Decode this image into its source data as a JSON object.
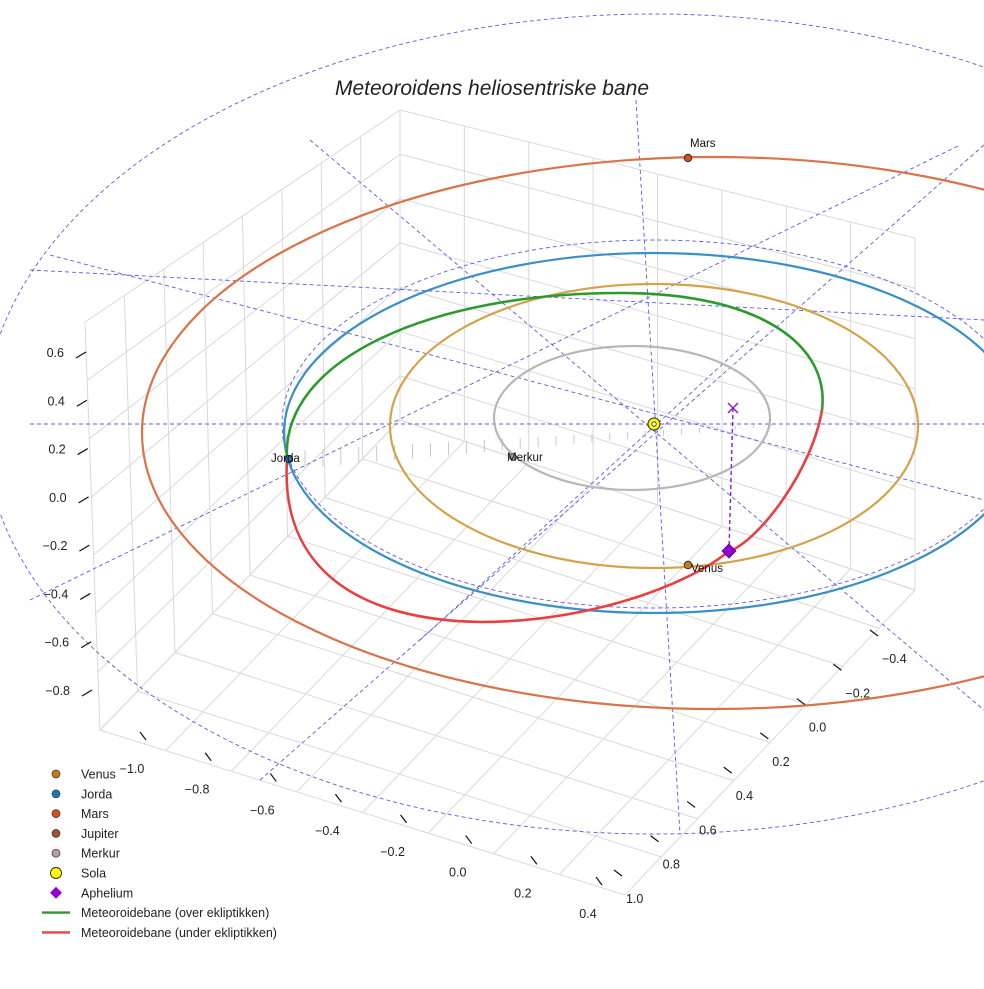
{
  "chart_data": {
    "type": "line",
    "title": "Meteoroidens heliosentriske bane",
    "axes": {
      "x": {
        "ticks": [
          -1.0,
          -0.8,
          -0.6,
          -0.4,
          -0.2,
          0.0,
          0.2,
          0.4
        ],
        "tick_labels": [
          "−1.0",
          "−0.8",
          "−0.6",
          "−0.4",
          "−0.2",
          "0.0",
          "0.2",
          "0.4"
        ]
      },
      "y": {
        "ticks": [
          -0.4,
          -0.2,
          0.0,
          0.2,
          0.4,
          0.6,
          0.8,
          1.0
        ],
        "tick_labels": [
          "−0.4",
          "−0.2",
          "0.0",
          "0.2",
          "0.4",
          "0.6",
          "0.8",
          "1.0"
        ]
      },
      "z": {
        "ticks": [
          -0.8,
          -0.6,
          -0.4,
          -0.2,
          0.0,
          0.2,
          0.4,
          0.6
        ],
        "tick_labels": [
          "−0.8",
          "−0.6",
          "−0.4",
          "−0.2",
          "0.0",
          "0.2",
          "0.4",
          "0.6"
        ]
      }
    },
    "planet_labels": [
      {
        "name": "Mars",
        "text": "Mars"
      },
      {
        "name": "Jorda",
        "text": "Jorda"
      },
      {
        "name": "Merkur",
        "text": "Merkur"
      },
      {
        "name": "Venus",
        "text": "Venus"
      }
    ],
    "orbits": [
      {
        "name": "Merkur",
        "color": "#bdb5b5"
      },
      {
        "name": "Venus",
        "color": "#d4a24a"
      },
      {
        "name": "Jorda",
        "color": "#3a8fc4"
      },
      {
        "name": "Mars",
        "color": "#d9734a"
      }
    ],
    "meteoroid_orbit": [
      {
        "name": "Meteoroidebane (over ekliptikken)",
        "color": "#2e9a2e"
      },
      {
        "name": "Meteoroidebane (under ekliptikken)",
        "color": "#e84040"
      }
    ],
    "grid": true
  },
  "legend": [
    {
      "label": "Venus",
      "marker": "circle",
      "color": "#c8781e"
    },
    {
      "label": "Jorda",
      "marker": "circle",
      "color": "#1f77b4"
    },
    {
      "label": "Mars",
      "marker": "circle",
      "color": "#d2501e"
    },
    {
      "label": "Jupiter",
      "marker": "circle",
      "color": "#a0522d"
    },
    {
      "label": "Merkur",
      "marker": "circle",
      "color": "#b4a0a0"
    },
    {
      "label": "Sola",
      "marker": "circle-large",
      "color": "#ffff00"
    },
    {
      "label": "Aphelium",
      "marker": "diamond",
      "color": "#9400d3"
    },
    {
      "label": "Meteoroidebane (over ekliptikken)",
      "marker": "line",
      "color": "#2e9a2e"
    },
    {
      "label": "Meteoroidebane (under ekliptikken)",
      "marker": "line",
      "color": "#e84040"
    }
  ]
}
